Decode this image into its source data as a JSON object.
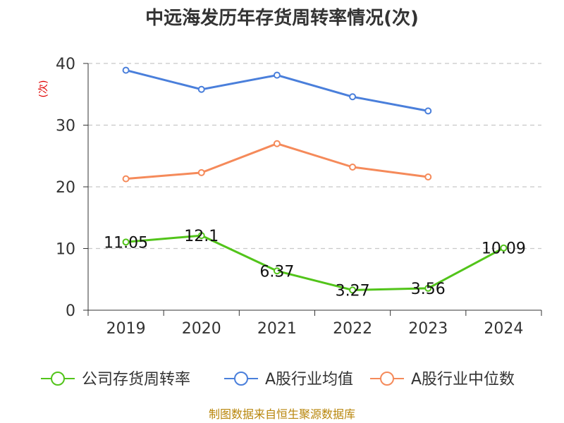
{
  "chart_data": {
    "type": "line",
    "title": "中远海发历年存货周转率情况(次)",
    "ylabel": "(次)",
    "xlabel": "",
    "categories": [
      "2019",
      "2020",
      "2021",
      "2022",
      "2023",
      "2024"
    ],
    "yticks": [
      "0",
      "10",
      "20",
      "30",
      "40"
    ],
    "ylim": [
      0,
      40
    ],
    "grid": true,
    "legend_position": "bottom",
    "series": [
      {
        "name": "公司存货周转率",
        "color": "#52c41a",
        "values": [
          11.05,
          12.1,
          6.37,
          3.27,
          3.56,
          10.09
        ],
        "labels": [
          "11.05",
          "12.1",
          "6.37",
          "3.27",
          "3.56",
          "10.09"
        ]
      },
      {
        "name": "A股行业均值",
        "color": "#4a7fdb",
        "values": [
          38.9,
          35.8,
          38.1,
          34.6,
          32.3,
          null
        ]
      },
      {
        "name": "A股行业中位数",
        "color": "#f58a5a",
        "values": [
          21.3,
          22.3,
          27.0,
          23.2,
          21.6,
          null
        ]
      }
    ],
    "source": "制图数据来自恒生聚源数据库"
  }
}
